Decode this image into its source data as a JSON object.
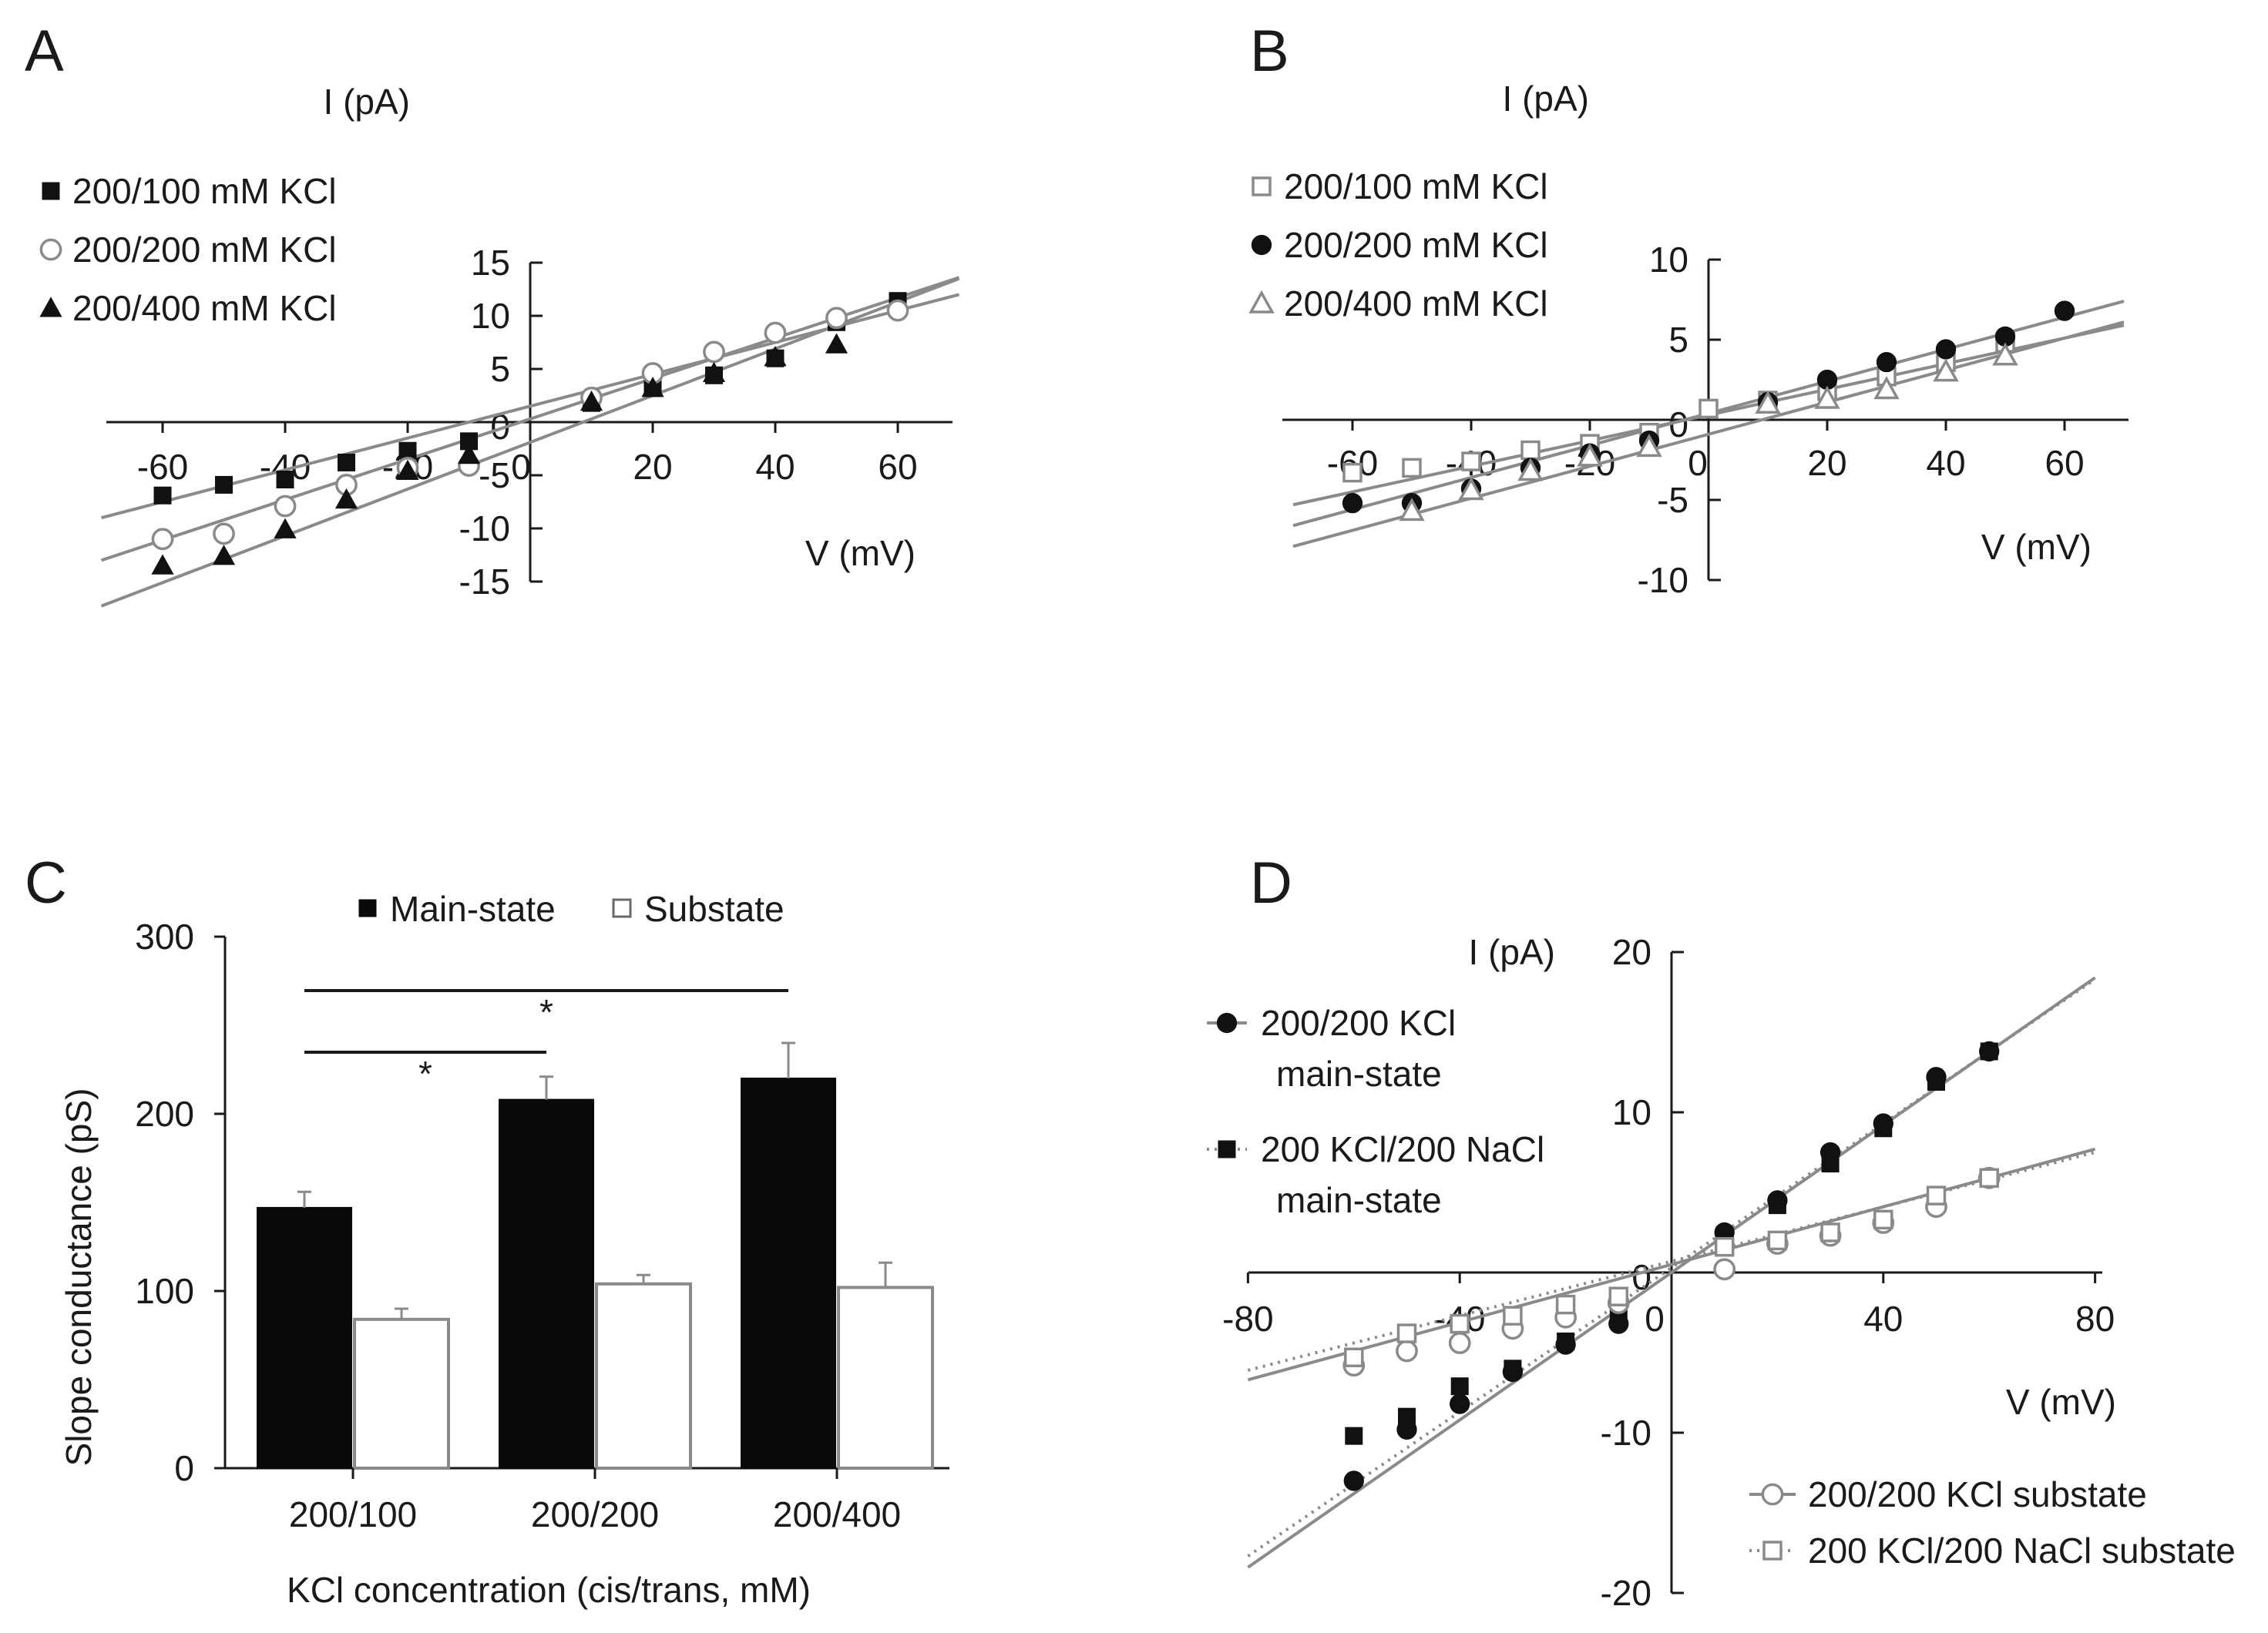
{
  "chart_data": [
    {
      "panel": "A",
      "type": "scatter",
      "xlabel": "V (mV)",
      "ylabel": "I (pA)",
      "xlim": [
        -70,
        70
      ],
      "ylim": [
        -15,
        15
      ],
      "xticks": [
        -60,
        -40,
        -20,
        0,
        20,
        40,
        60
      ],
      "xtick_labels": [
        "-60",
        "-40",
        "-20",
        "0",
        "20",
        "40",
        "60"
      ],
      "yticks": [
        -15,
        -10,
        -5,
        0,
        5,
        10,
        15
      ],
      "ytick_labels": [
        "-15",
        "-10",
        "-5",
        "0",
        "5",
        "10",
        "15"
      ],
      "legend_position": "top-left",
      "series": [
        {
          "name": "200/100 mM KCl",
          "marker": "square-filled",
          "x": [
            -60,
            -50,
            -40,
            -30,
            -20,
            -10,
            10,
            20,
            30,
            40,
            50,
            60
          ],
          "y": [
            -6.9,
            -5.9,
            -5.4,
            -3.8,
            -2.7,
            -1.8,
            1.8,
            3.2,
            4.4,
            6.0,
            9.4,
            11.4
          ],
          "fit": {
            "slope": 0.15,
            "intercept": 1.5
          }
        },
        {
          "name": "200/200 mM KCl",
          "marker": "circle-open",
          "x": [
            -60,
            -50,
            -40,
            -30,
            -20,
            -10,
            10,
            20,
            30,
            40,
            50,
            60
          ],
          "y": [
            -11.0,
            -10.5,
            -7.9,
            -5.9,
            -4.3,
            -4.1,
            2.3,
            4.6,
            6.6,
            8.4,
            9.8,
            10.5
          ],
          "fit": {
            "slope": 0.19,
            "intercept": 0.3
          }
        },
        {
          "name": "200/400 mM KCl",
          "marker": "triangle-filled",
          "x": [
            -60,
            -50,
            -40,
            -30,
            -20,
            -10,
            10,
            20,
            30,
            40,
            50
          ],
          "y": [
            -13.5,
            -12.6,
            -10.1,
            -7.3,
            -4.6,
            -3.1,
            1.9,
            3.2,
            4.6,
            6.1,
            7.3
          ],
          "fit": {
            "slope": 0.22,
            "intercept": -1.9
          }
        }
      ]
    },
    {
      "panel": "B",
      "type": "scatter",
      "xlabel": "V (mV)",
      "ylabel": "I (pA)",
      "xlim": [
        -70,
        70
      ],
      "ylim": [
        -10,
        10
      ],
      "xticks": [
        -60,
        -40,
        -20,
        0,
        20,
        40,
        60
      ],
      "xtick_labels": [
        "-60",
        "-40",
        "-20",
        "0",
        "20",
        "40",
        "60"
      ],
      "yticks": [
        -10,
        -5,
        0,
        5,
        10
      ],
      "ytick_labels": [
        "-10",
        "-5",
        "0",
        "5",
        "10"
      ],
      "legend_position": "top-left",
      "series": [
        {
          "name": "200/100 mM KCl",
          "marker": "square-open",
          "x": [
            -60,
            -50,
            -40,
            -30,
            -20,
            -10,
            0,
            10,
            20,
            30,
            40,
            50
          ],
          "y": [
            -3.3,
            -3.0,
            -2.6,
            -1.9,
            -1.5,
            -0.8,
            0.7,
            1.2,
            1.8,
            2.7,
            3.6,
            4.8
          ],
          "fit": {
            "slope": 0.08,
            "intercept": 0.3
          }
        },
        {
          "name": "200/200 mM KCl",
          "marker": "circle-filled",
          "x": [
            -60,
            -50,
            -40,
            -30,
            -20,
            -10,
            10,
            20,
            30,
            40,
            50,
            60
          ],
          "y": [
            -5.2,
            -5.2,
            -4.3,
            -3.0,
            -2.1,
            -1.3,
            1.1,
            2.5,
            3.6,
            4.4,
            5.2,
            6.8
          ],
          "fit": {
            "slope": 0.1,
            "intercept": 0.4
          }
        },
        {
          "name": "200/400 mM KCl",
          "marker": "triangle-open",
          "x": [
            -50,
            -40,
            -30,
            -20,
            -10,
            10,
            20,
            30,
            40,
            50
          ],
          "y": [
            -5.7,
            -4.4,
            -3.2,
            -2.3,
            -1.7,
            1.0,
            1.3,
            1.9,
            3.0,
            4.0
          ],
          "fit": {
            "slope": 0.1,
            "intercept": -0.9
          }
        }
      ]
    },
    {
      "panel": "C",
      "type": "bar",
      "title": "",
      "xlabel": "KCl concentration (cis/trans, mM)",
      "ylabel": "Slope conductance (pS)",
      "ylim": [
        0,
        300
      ],
      "yticks": [
        0,
        100,
        200,
        300
      ],
      "ytick_labels": [
        "0",
        "100",
        "200",
        "300"
      ],
      "categories": [
        "200/100",
        "200/200",
        "200/400"
      ],
      "legend_position": "top",
      "series": [
        {
          "name": "Main-state",
          "color": "#0b0808",
          "values": [
            147,
            208,
            220
          ],
          "errors": [
            9,
            13,
            20
          ]
        },
        {
          "name": "Substate",
          "color": "#ffffff",
          "values": [
            84,
            104,
            102
          ],
          "errors": [
            6,
            5,
            14
          ]
        }
      ],
      "significance": [
        {
          "from": "200/100",
          "to": "200/200",
          "label": "*"
        },
        {
          "from": "200/100",
          "to": "200/400",
          "label": "*"
        }
      ]
    },
    {
      "panel": "D",
      "type": "scatter",
      "xlabel": "V (mV)",
      "ylabel": "I (pA)",
      "xlim": [
        -80,
        80
      ],
      "ylim": [
        -20,
        20
      ],
      "xticks": [
        -80,
        -40,
        0,
        40,
        80
      ],
      "xtick_labels": [
        "-80",
        "-40",
        "0",
        "40",
        "80"
      ],
      "yticks": [
        -20,
        -10,
        0,
        10,
        20
      ],
      "ytick_labels": [
        "-20",
        "-10",
        "0",
        "10",
        "20"
      ],
      "legend_position": "top-left and bottom-right",
      "series": [
        {
          "name": "200/200 KCl main-state",
          "line1": "200/200 KCl",
          "line2": "main-state",
          "marker": "circle-filled",
          "line": "solid",
          "x": [
            -60,
            -50,
            -40,
            -30,
            -20,
            -10,
            10,
            20,
            30,
            40,
            50,
            60
          ],
          "y": [
            -13.0,
            -9.8,
            -8.2,
            -6.2,
            -4.5,
            -3.2,
            2.5,
            4.5,
            7.5,
            9.3,
            12.2,
            13.8
          ],
          "fit": {
            "slope": 0.23,
            "intercept": 0.0
          }
        },
        {
          "name": "200 KCl/200 NaCl main-state",
          "line1": "200 KCl/200 NaCl",
          "line2": "main-state",
          "marker": "square-filled",
          "line": "dotted",
          "x": [
            -60,
            -50,
            -40,
            -30,
            -20,
            -10,
            10,
            20,
            30,
            40,
            50,
            60
          ],
          "y": [
            -10.2,
            -9.0,
            -7.1,
            -6.0,
            -4.3,
            -2.5,
            2.3,
            4.2,
            6.8,
            9.0,
            11.9,
            13.8
          ],
          "fit": {
            "slope": 0.225,
            "intercept": 0.3
          }
        },
        {
          "name": "200/200 KCl substate",
          "marker": "circle-open",
          "line": "solid",
          "x": [
            -60,
            -50,
            -40,
            -30,
            -20,
            -10,
            10,
            20,
            30,
            40,
            50,
            60
          ],
          "y": [
            -5.8,
            -4.9,
            -4.4,
            -3.5,
            -2.8,
            -1.9,
            0.2,
            1.8,
            2.3,
            3.1,
            4.1,
            5.9
          ],
          "fit": {
            "slope": 0.09,
            "intercept": 0.5
          }
        },
        {
          "name": "200 KCl/200 NaCl substate",
          "marker": "square-open",
          "line": "dotted",
          "x": [
            -60,
            -50,
            -40,
            -30,
            -20,
            -10,
            10,
            20,
            30,
            40,
            50,
            60
          ],
          "y": [
            -5.3,
            -3.8,
            -3.2,
            -2.7,
            -2.0,
            -1.5,
            1.6,
            2.0,
            2.5,
            3.3,
            4.8,
            5.9
          ],
          "fit": {
            "slope": 0.085,
            "intercept": 0.7
          }
        }
      ]
    }
  ],
  "panel_letters": {
    "A": "A",
    "B": "B",
    "C": "C",
    "D": "D"
  }
}
